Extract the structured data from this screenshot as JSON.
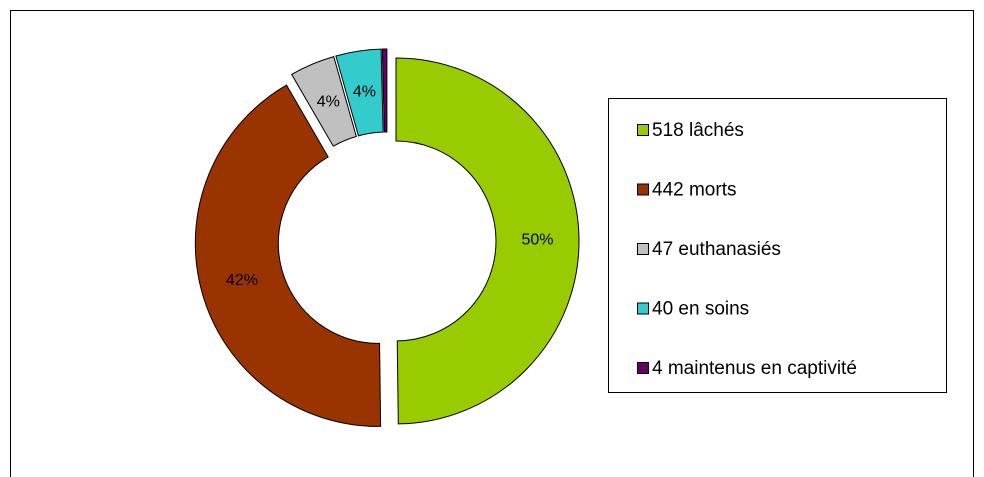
{
  "chart_data": {
    "type": "donut",
    "categories": [
      "518 lâchés",
      "442 morts",
      "47 euthanasiés",
      "40 en soins",
      "4 maintenus en captivité"
    ],
    "values": [
      50,
      42,
      4,
      4,
      0.4
    ],
    "value_labels": [
      "50%",
      "42%",
      "4%",
      "4%",
      null
    ],
    "colors": [
      "#99cc00",
      "#993300",
      "#c0c0c0",
      "#33cccc",
      "#660066"
    ],
    "legend": "right"
  }
}
